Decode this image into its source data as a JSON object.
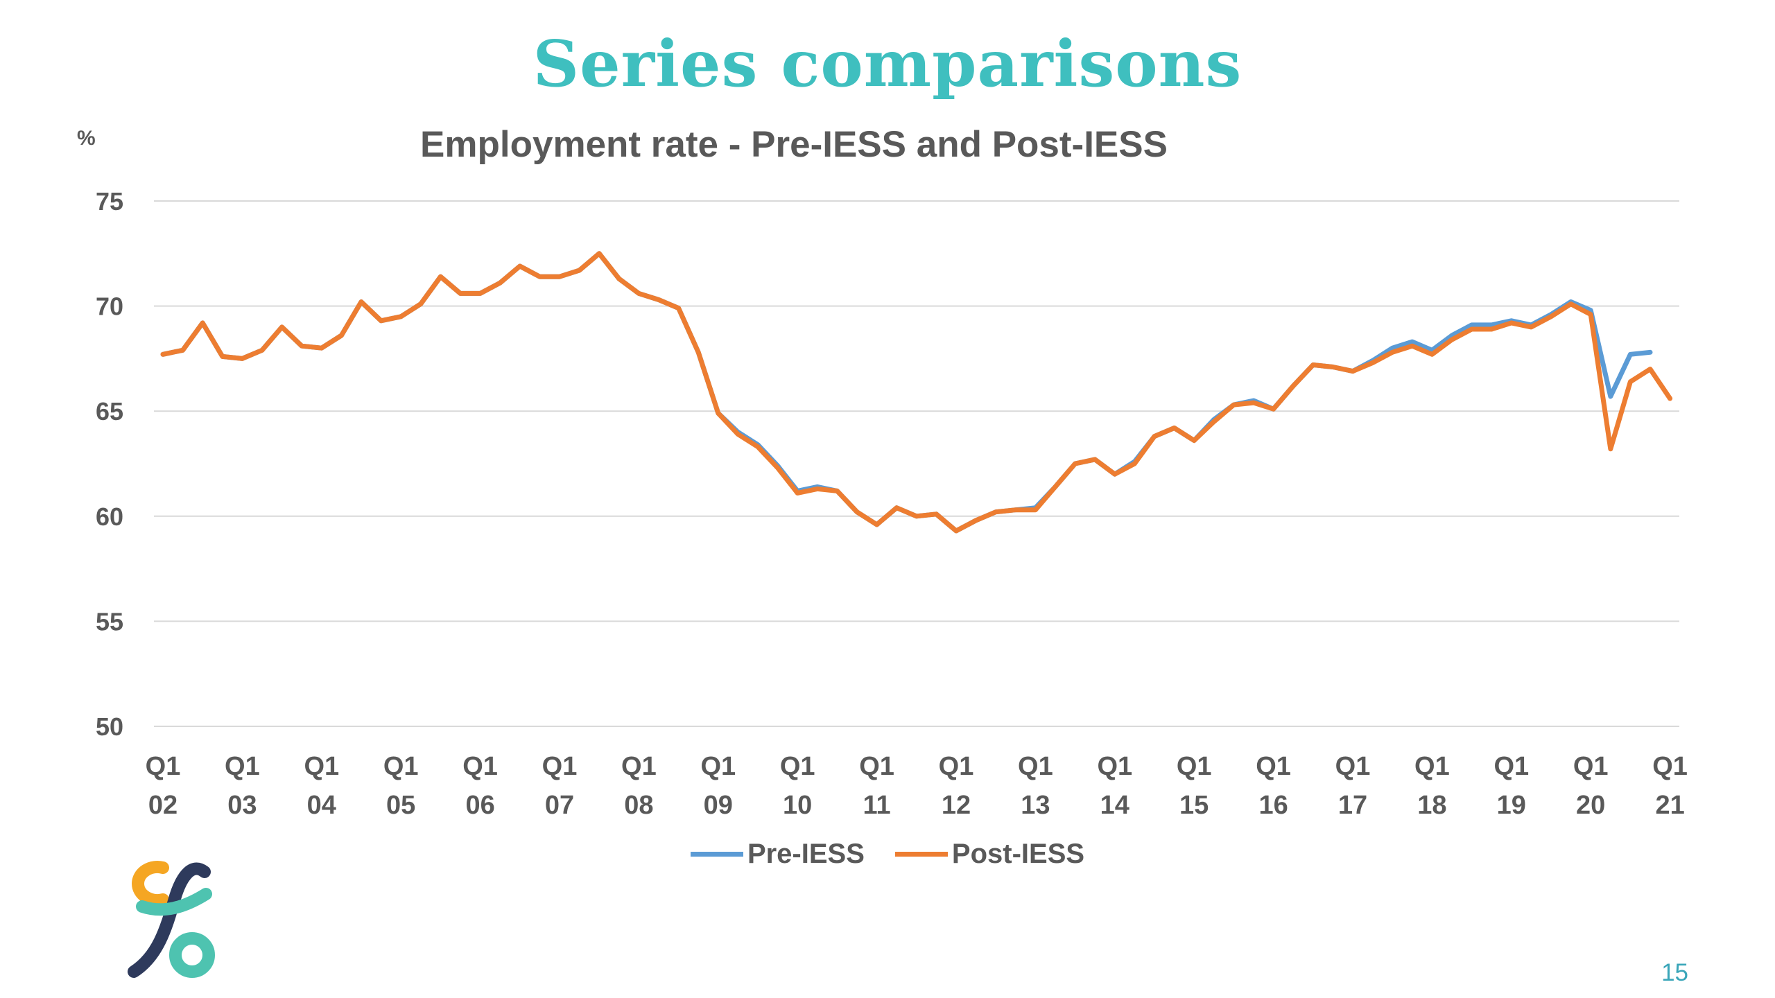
{
  "slide": {
    "title": "Series comparisons",
    "page_number": "15"
  },
  "chart_data": {
    "type": "line",
    "title": "Employment rate - Pre-IESS and Post-IESS",
    "unit_label": "%",
    "xlabel": "",
    "ylabel": "%",
    "ylim": [
      50,
      75
    ],
    "yticks": [
      "75",
      "70",
      "65",
      "60",
      "55",
      "50"
    ],
    "grid": true,
    "legend_position": "bottom",
    "x_ticks": [
      {
        "q": "Q1",
        "year": "02"
      },
      {
        "q": "Q1",
        "year": "03"
      },
      {
        "q": "Q1",
        "year": "04"
      },
      {
        "q": "Q1",
        "year": "05"
      },
      {
        "q": "Q1",
        "year": "06"
      },
      {
        "q": "Q1",
        "year": "07"
      },
      {
        "q": "Q1",
        "year": "08"
      },
      {
        "q": "Q1",
        "year": "09"
      },
      {
        "q": "Q1",
        "year": "10"
      },
      {
        "q": "Q1",
        "year": "11"
      },
      {
        "q": "Q1",
        "year": "12"
      },
      {
        "q": "Q1",
        "year": "13"
      },
      {
        "q": "Q1",
        "year": "14"
      },
      {
        "q": "Q1",
        "year": "15"
      },
      {
        "q": "Q1",
        "year": "16"
      },
      {
        "q": "Q1",
        "year": "17"
      },
      {
        "q": "Q1",
        "year": "18"
      },
      {
        "q": "Q1",
        "year": "19"
      },
      {
        "q": "Q1",
        "year": "20"
      },
      {
        "q": "Q1",
        "year": "21"
      }
    ],
    "series": [
      {
        "name": "Pre-IESS",
        "color": "#5b9bd5",
        "values": [
          67.7,
          67.9,
          69.2,
          67.6,
          67.5,
          67.9,
          69.0,
          68.1,
          68.0,
          68.6,
          70.2,
          69.3,
          69.5,
          70.1,
          71.4,
          70.6,
          70.6,
          71.1,
          71.9,
          71.4,
          71.4,
          71.7,
          72.5,
          71.3,
          70.6,
          70.3,
          69.9,
          67.8,
          64.9,
          64.0,
          63.4,
          62.4,
          61.2,
          61.4,
          61.2,
          60.2,
          59.6,
          60.4,
          60.0,
          60.1,
          59.3,
          59.8,
          60.2,
          60.3,
          60.4,
          61.4,
          62.5,
          62.7,
          62.0,
          62.6,
          63.8,
          64.2,
          63.6,
          64.6,
          65.3,
          65.5,
          65.1,
          66.2,
          67.2,
          67.1,
          66.9,
          67.4,
          68.0,
          68.3,
          67.9,
          68.6,
          69.1,
          69.1,
          69.3,
          69.1,
          69.6,
          70.2,
          69.8,
          65.7,
          67.7,
          67.8
        ]
      },
      {
        "name": "Post-IESS",
        "color": "#ed7d31",
        "values": [
          67.7,
          67.9,
          69.2,
          67.6,
          67.5,
          67.9,
          69.0,
          68.1,
          68.0,
          68.6,
          70.2,
          69.3,
          69.5,
          70.1,
          71.4,
          70.6,
          70.6,
          71.1,
          71.9,
          71.4,
          71.4,
          71.7,
          72.5,
          71.3,
          70.6,
          70.3,
          69.9,
          67.8,
          64.9,
          63.9,
          63.3,
          62.3,
          61.1,
          61.3,
          61.2,
          60.2,
          59.6,
          60.4,
          60.0,
          60.1,
          59.3,
          59.8,
          60.2,
          60.3,
          60.3,
          61.4,
          62.5,
          62.7,
          62.0,
          62.5,
          63.8,
          64.2,
          63.6,
          64.5,
          65.3,
          65.4,
          65.1,
          66.2,
          67.2,
          67.1,
          66.9,
          67.3,
          67.8,
          68.1,
          67.7,
          68.4,
          68.9,
          68.9,
          69.2,
          69.0,
          69.5,
          70.1,
          69.6,
          63.2,
          66.4,
          67.0,
          65.6
        ]
      }
    ]
  }
}
